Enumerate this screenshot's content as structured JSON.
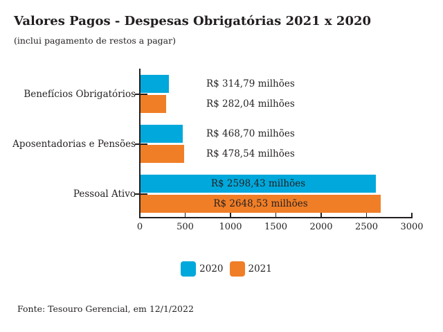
{
  "header": {
    "title": "Valores Pagos - Despesas Obrigatórias 2021 x 2020",
    "subtitle": "(inclui pagamento de restos a pagar)"
  },
  "chart_data": {
    "type": "bar",
    "orientation": "horizontal",
    "title": "Valores Pagos - Despesas Obrigatórias 2021 x 2020",
    "subtitle": "(inclui pagamento de restos a pagar)",
    "categories": [
      "Benefícios Obrigatórios",
      "Aposentadorias e Pensões",
      "Pessoal Ativo"
    ],
    "series": [
      {
        "name": "2020",
        "color": "#00A8DB",
        "values": [
          314.79,
          468.7,
          2598.43
        ],
        "labels": [
          "R$ 314,79 milhões",
          "R$ 468,70 milhões",
          "R$ 2598,43 milhões"
        ]
      },
      {
        "name": "2021",
        "color": "#F07E27",
        "values": [
          282.04,
          478.54,
          2648.53
        ],
        "labels": [
          "R$ 282,04 milhões",
          "R$ 478,54 milhões",
          "R$ 2648,53 milhões"
        ]
      }
    ],
    "value_unit": "R$ milhões",
    "xlim": [
      0,
      3000
    ],
    "xticks": [
      0,
      500,
      1000,
      1500,
      2000,
      2500,
      3000
    ],
    "label_placement": [
      "outside",
      "outside",
      "inside"
    ],
    "grid": false,
    "legend_position": "bottom"
  },
  "legend": {
    "items": [
      {
        "label": "2020",
        "color": "#00A8DB"
      },
      {
        "label": "2021",
        "color": "#F07E27"
      }
    ]
  },
  "footer": {
    "source": "Fonte: Tesouro Gerencial, em 12/1/2022"
  }
}
